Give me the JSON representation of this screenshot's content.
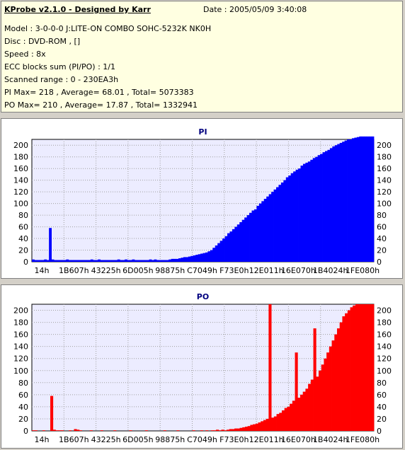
{
  "header": {
    "title": "KProbe v2.1.0 - Designed by Karr",
    "date": "Date : 2005/05/09 3:40:08",
    "lines": [
      "Model : 3-0-0-0 J:LITE-ON COMBO SOHC-5232K NK0H",
      "Disc : DVD-ROM ,  []",
      "Speed : 8x",
      "ECC blocks sum (PI/PO) : 1/1",
      "Scanned range : 0 - 230EA3h",
      "PI Max= 218 , Average= 68.01 , Total= 5073383",
      "PO Max= 210 , Average= 17.87 , Total= 1332941"
    ]
  },
  "colors": {
    "pi": "#0000ff",
    "po": "#ff0000",
    "plot_bg": "#ececff",
    "grid": "#a0a0a0"
  },
  "chart_data": [
    {
      "type": "area",
      "title": "PI",
      "ylim": [
        0,
        210
      ],
      "yticks": [
        0,
        20,
        40,
        60,
        80,
        100,
        120,
        140,
        160,
        180,
        200
      ],
      "xticklabels": [
        "14h",
        "1B607h",
        "43225h",
        "6D005h",
        "98875h",
        "C7049h",
        "F73E0h",
        "12E011h",
        "16E070h",
        "1B4024h",
        "1FE080h"
      ],
      "grid": true,
      "series": [
        {
          "values": [
            4,
            3,
            3,
            3,
            3,
            4,
            3,
            58,
            4,
            3,
            3,
            3,
            3,
            3,
            4,
            3,
            3,
            3,
            3,
            3,
            3,
            3,
            3,
            3,
            4,
            3,
            3,
            4,
            3,
            3,
            3,
            3,
            3,
            3,
            3,
            4,
            3,
            3,
            4,
            3,
            3,
            4,
            3,
            3,
            3,
            3,
            3,
            3,
            4,
            3,
            4,
            3,
            3,
            3,
            3,
            3,
            4,
            5,
            5,
            5,
            6,
            7,
            8,
            8,
            9,
            10,
            11,
            12,
            13,
            14,
            15,
            16,
            18,
            20,
            24,
            28,
            32,
            36,
            40,
            44,
            49,
            52,
            56,
            60,
            64,
            68,
            72,
            76,
            80,
            84,
            88,
            90,
            96,
            100,
            104,
            108,
            112,
            116,
            120,
            124,
            128,
            132,
            136,
            140,
            145,
            148,
            152,
            155,
            158,
            160,
            165,
            168,
            170,
            172,
            175,
            178,
            180,
            183,
            185,
            188,
            190,
            192,
            195,
            198,
            200,
            202,
            204,
            206,
            208,
            210,
            210,
            212,
            213,
            214,
            215,
            215,
            215,
            215,
            215,
            215
          ]
        }
      ]
    },
    {
      "type": "area",
      "title": "PO",
      "ylim": [
        0,
        210
      ],
      "yticks": [
        0,
        20,
        40,
        60,
        80,
        100,
        120,
        140,
        160,
        180,
        200
      ],
      "xticklabels": [
        "14h",
        "1B607h",
        "43225h",
        "6D005h",
        "98875h",
        "C7049h",
        "F73E0h",
        "12E011h",
        "16E070h",
        "1B4024h",
        "1FE080h"
      ],
      "grid": true,
      "series": [
        {
          "values": [
            1,
            1,
            0,
            0,
            1,
            0,
            0,
            58,
            2,
            1,
            1,
            1,
            0,
            0,
            1,
            0,
            3,
            2,
            1,
            0,
            0,
            0,
            1,
            0,
            0,
            0,
            1,
            0,
            0,
            0,
            0,
            1,
            0,
            0,
            0,
            0,
            0,
            1,
            0,
            0,
            0,
            0,
            0,
            1,
            0,
            0,
            0,
            0,
            0,
            0,
            1,
            0,
            0,
            0,
            0,
            1,
            0,
            0,
            0,
            0,
            0,
            1,
            0,
            0,
            1,
            0,
            1,
            0,
            1,
            1,
            2,
            1,
            2,
            1,
            2,
            3,
            3,
            4,
            4,
            5,
            6,
            7,
            8,
            10,
            11,
            12,
            14,
            16,
            18,
            20,
            210,
            22,
            24,
            28,
            30,
            34,
            38,
            40,
            45,
            50,
            130,
            55,
            60,
            65,
            70,
            78,
            85,
            170,
            90,
            100,
            110,
            120,
            130,
            140,
            150,
            160,
            170,
            180,
            190,
            195,
            200,
            205,
            208,
            210,
            210,
            210,
            210,
            210,
            210,
            210
          ]
        }
      ]
    }
  ]
}
